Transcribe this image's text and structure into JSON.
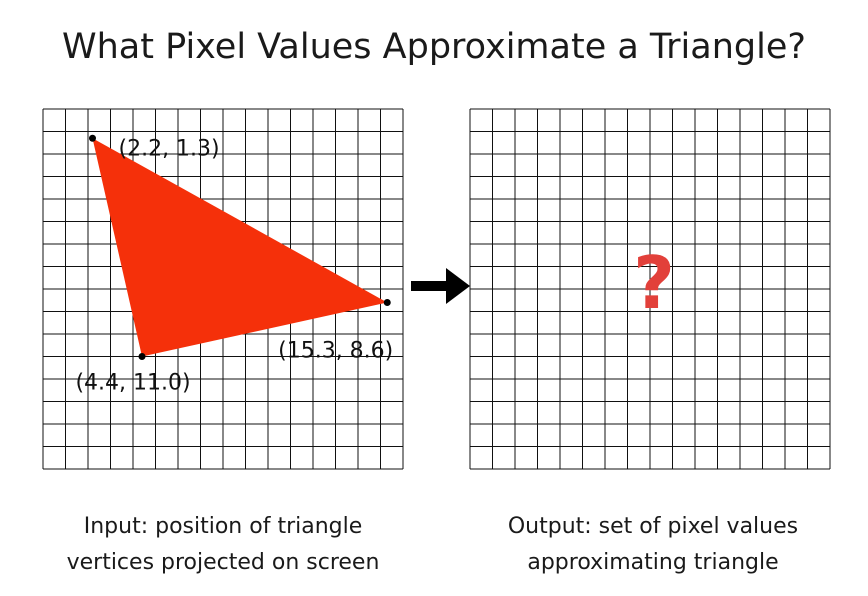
{
  "title": "What Pixel Values Approximate a Triangle?",
  "grid": {
    "columns": 16,
    "rows": 16
  },
  "triangle": {
    "color": "#f5300a",
    "vertices": [
      {
        "label": "(2.2, 1.3)",
        "x": 2.2,
        "y": 1.3
      },
      {
        "label": "(15.3, 8.6)",
        "x": 15.3,
        "y": 8.6
      },
      {
        "label": "(4.4, 11.0)",
        "x": 4.4,
        "y": 11.0
      }
    ]
  },
  "question_mark": {
    "text": "?",
    "color": "#e2403a"
  },
  "arrow": {
    "icon": "right-arrow-icon",
    "color": "#000000"
  },
  "captions": {
    "input_line1": "Input: position of triangle",
    "input_line2": "vertices projected on screen",
    "output_line1": "Output: set of pixel values",
    "output_line2": "approximating triangle"
  }
}
